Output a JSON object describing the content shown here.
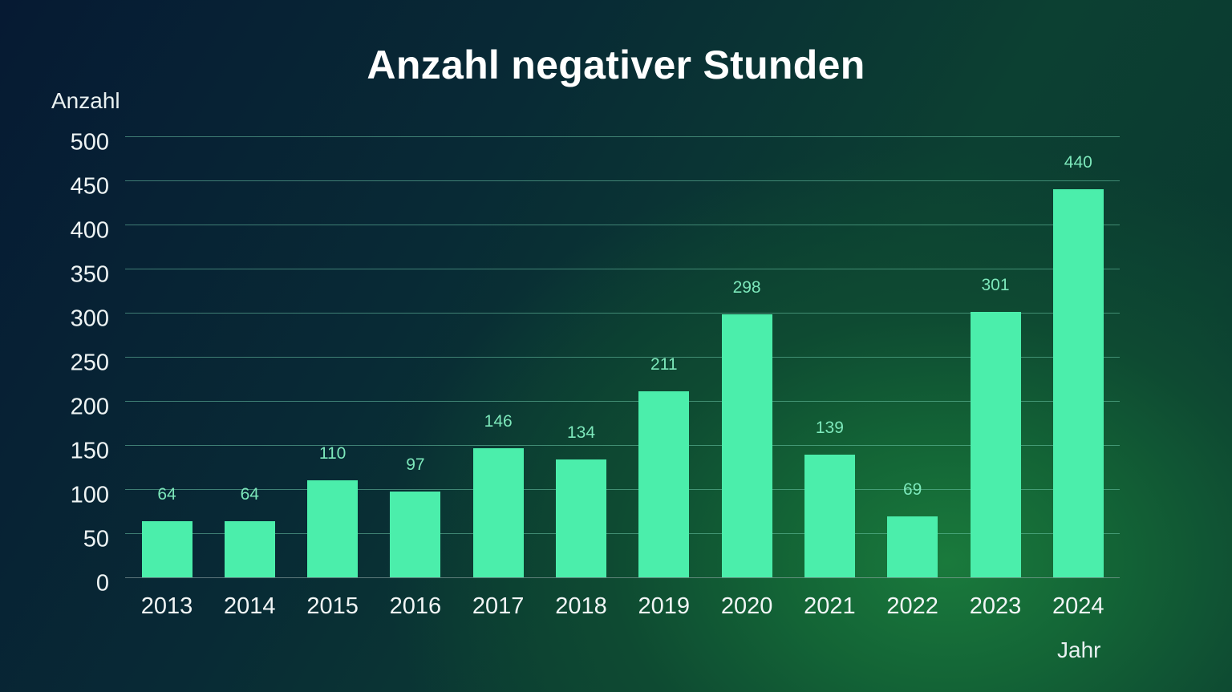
{
  "chart": {
    "title": "Anzahl negativer Stunden",
    "ylabel": "Anzahl",
    "xlabel": "Jahr"
  },
  "chart_data": {
    "type": "bar",
    "title": "Anzahl negativer Stunden",
    "xlabel": "Jahr",
    "ylabel": "Anzahl",
    "categories": [
      "2013",
      "2014",
      "2015",
      "2016",
      "2017",
      "2018",
      "2019",
      "2020",
      "2021",
      "2022",
      "2023",
      "2024"
    ],
    "values": [
      64,
      64,
      110,
      97,
      146,
      134,
      211,
      298,
      139,
      69,
      301,
      440
    ],
    "ylim": [
      0,
      500
    ],
    "yticks": [
      0,
      50,
      100,
      150,
      200,
      250,
      300,
      350,
      400,
      450,
      500
    ],
    "grid": true,
    "data_labels": true,
    "bar_color": "#4beeab",
    "legend": null
  },
  "colors": {
    "bar": "#4beeab",
    "label": "#7de8bb"
  }
}
